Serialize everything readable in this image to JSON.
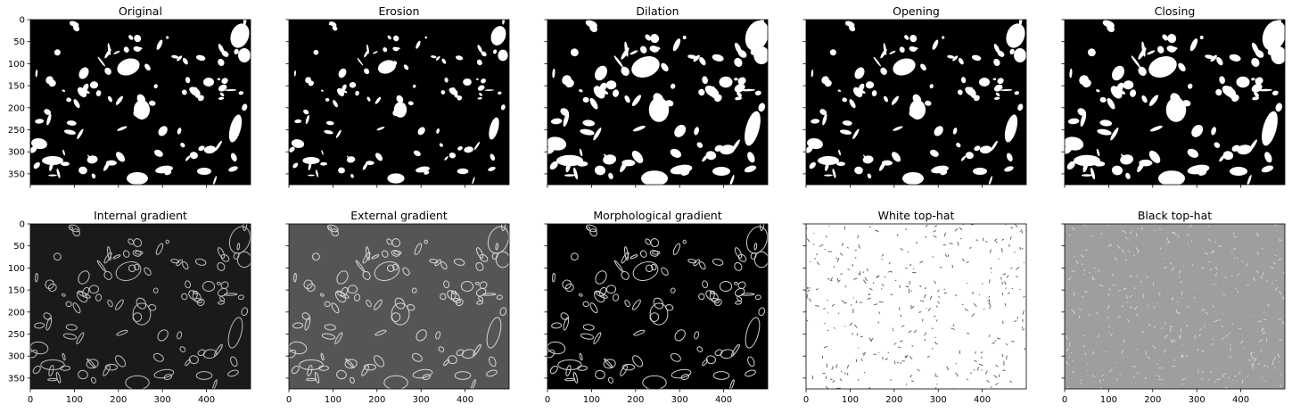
{
  "figure": {
    "x_ticks": [
      "0",
      "100",
      "200",
      "300",
      "400"
    ],
    "y_ticks": [
      "0",
      "50",
      "100",
      "150",
      "200",
      "250",
      "300",
      "350"
    ],
    "panels": [
      {
        "title": "Original",
        "style": "binary",
        "background": "#000000",
        "foreground": "#ffffff"
      },
      {
        "title": "Erosion",
        "style": "binary-eroded",
        "background": "#000000",
        "foreground": "#ffffff"
      },
      {
        "title": "Dilation",
        "style": "binary-dilated",
        "background": "#000000",
        "foreground": "#ffffff"
      },
      {
        "title": "Opening",
        "style": "binary",
        "background": "#000000",
        "foreground": "#ffffff"
      },
      {
        "title": "Closing",
        "style": "binary-dilated",
        "background": "#000000",
        "foreground": "#ffffff"
      },
      {
        "title": "Internal gradient",
        "style": "edges",
        "background": "#1a1a1a",
        "foreground": "#bdbdbd"
      },
      {
        "title": "External gradient",
        "style": "edges",
        "background": "#555555",
        "foreground": "#d6d6d6"
      },
      {
        "title": "Morphological gradient",
        "style": "edges",
        "background": "#000000",
        "foreground": "#d0d0d0"
      },
      {
        "title": "White top-hat",
        "style": "specks",
        "background": "#ffffff",
        "foreground": "#555555"
      },
      {
        "title": "Black top-hat",
        "style": "specks",
        "background": "#9e9e9e",
        "foreground": "#d8d8d8"
      }
    ]
  }
}
